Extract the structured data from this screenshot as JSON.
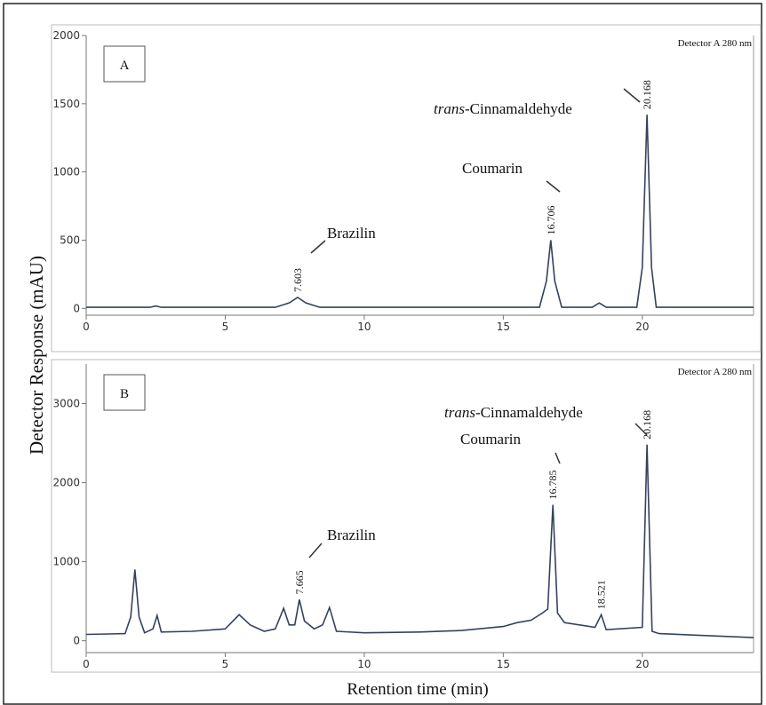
{
  "axis_labels": {
    "y": "Detector Response (mAU)",
    "x": "Retention time (min)"
  },
  "chart_data": [
    {
      "type": "line",
      "panel": "A",
      "detector": "Detector A 280 nm",
      "color": "#34425e",
      "x": [
        0,
        2.3,
        2.5,
        2.7,
        6.8,
        7.3,
        7.603,
        7.9,
        8.4,
        16.3,
        16.55,
        16.706,
        16.85,
        17.1,
        18.2,
        18.45,
        18.7,
        19.8,
        20.0,
        20.168,
        20.33,
        20.5,
        24
      ],
      "values": [
        8,
        8,
        18,
        8,
        8,
        40,
        80,
        40,
        8,
        8,
        200,
        500,
        200,
        8,
        8,
        40,
        8,
        8,
        300,
        1420,
        300,
        8,
        8
      ],
      "xlim": [
        0,
        24
      ],
      "xticks": [
        0,
        5,
        10,
        15,
        20
      ],
      "ylim": [
        -50,
        2000
      ],
      "yticks": [
        0,
        500,
        1000,
        1500,
        2000
      ],
      "peak_labels": [
        7.603,
        16.706,
        20.168
      ],
      "annotations": [
        "Brazilin",
        "Coumarin",
        {
          "italic": "trans",
          "text": "-Cinnamaldehyde"
        }
      ]
    },
    {
      "type": "line",
      "panel": "B",
      "detector": "Detector A 280 nm",
      "color": "#34425e",
      "x": [
        0,
        1.4,
        1.6,
        1.75,
        1.9,
        2.1,
        2.4,
        2.55,
        2.7,
        3.8,
        5.0,
        5.5,
        5.9,
        6.4,
        6.8,
        7.1,
        7.3,
        7.5,
        7.665,
        7.85,
        8.2,
        8.5,
        8.75,
        9.0,
        10,
        12,
        13.5,
        15,
        15.5,
        16.0,
        16.4,
        16.6,
        16.785,
        16.95,
        17.2,
        18.3,
        18.521,
        18.7,
        20.0,
        20.168,
        20.35,
        20.6,
        22,
        24
      ],
      "values": [
        80,
        90,
        300,
        900,
        300,
        100,
        150,
        320,
        110,
        120,
        150,
        330,
        200,
        120,
        150,
        410,
        200,
        200,
        520,
        250,
        150,
        200,
        420,
        120,
        100,
        110,
        130,
        180,
        230,
        260,
        350,
        400,
        1720,
        350,
        230,
        170,
        330,
        140,
        170,
        2480,
        120,
        90,
        70,
        40
      ],
      "xlim": [
        0,
        24
      ],
      "xticks": [
        0,
        5,
        10,
        15,
        20
      ],
      "ylim": [
        -150,
        3500
      ],
      "yticks": [
        0,
        1000,
        2000,
        3000
      ],
      "peak_labels": [
        7.665,
        16.785,
        18.521,
        20.168
      ],
      "annotations": [
        "Brazilin",
        "Coumarin",
        {
          "italic": "trans",
          "text": "-Cinnamaldehyde"
        }
      ]
    }
  ]
}
